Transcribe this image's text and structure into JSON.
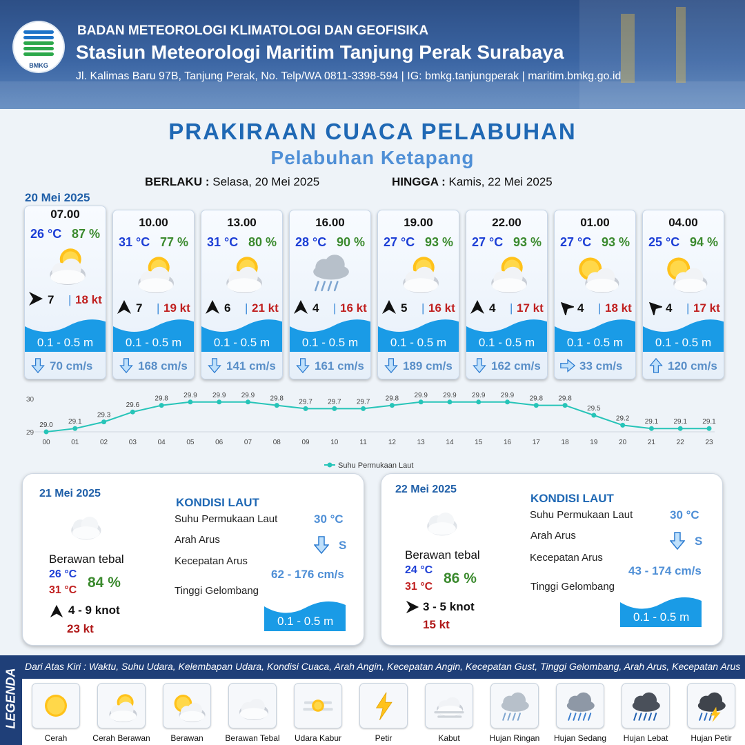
{
  "header": {
    "logo_text": "BMKG",
    "agency": "BADAN METEOROLOGI KLIMATOLOGI DAN GEOFISIKA",
    "station": "Stasiun Meteorologi Maritim Tanjung Perak Surabaya",
    "address": "Jl. Kalimas Baru 97B, Tanjung Perak, No. Telp/WA 0811-3398-594 | IG: bmkg.tanjungperak | maritim.bmkg.go.id"
  },
  "title": "PRAKIRAAN CUACA PELABUHAN",
  "subtitle": "Pelabuhan Ketapang",
  "validity": {
    "from_label": "BERLAKU :",
    "from_value": "Selasa, 20 Mei 2025",
    "to_label": "HINGGA :",
    "to_value": "Kamis, 22 Mei 2025"
  },
  "day1_date": "20 Mei 2025",
  "forecasts": [
    {
      "time": "07.00",
      "temp": "26 °C",
      "humidity": "87 %",
      "weather_icon": "cerah-berawan-icon",
      "wind_dir_icon": "arrow-east-icon",
      "wind_deg": 90,
      "wind_speed": "7",
      "gust": "18 kt",
      "wave": "0.1 - 0.5 m",
      "current_dir_icon": "arrow-down-icon",
      "current_deg": 180,
      "current_speed": "70 cm/s"
    },
    {
      "time": "10.00",
      "temp": "31 °C",
      "humidity": "77 %",
      "weather_icon": "cerah-berawan-icon",
      "wind_dir_icon": "arrow-north-icon",
      "wind_deg": 0,
      "wind_speed": "7",
      "gust": "19 kt",
      "wave": "0.1 - 0.5 m",
      "current_dir_icon": "arrow-down-icon",
      "current_deg": 180,
      "current_speed": "168 cm/s"
    },
    {
      "time": "13.00",
      "temp": "31 °C",
      "humidity": "80 %",
      "weather_icon": "cerah-berawan-icon",
      "wind_dir_icon": "arrow-north-icon",
      "wind_deg": 0,
      "wind_speed": "6",
      "gust": "21 kt",
      "wave": "0.1 - 0.5 m",
      "current_dir_icon": "arrow-down-icon",
      "current_deg": 180,
      "current_speed": "141 cm/s"
    },
    {
      "time": "16.00",
      "temp": "28 °C",
      "humidity": "90 %",
      "weather_icon": "hujan-ringan-icon",
      "wind_dir_icon": "arrow-north-icon",
      "wind_deg": 0,
      "wind_speed": "4",
      "gust": "16 kt",
      "wave": "0.1 - 0.5 m",
      "current_dir_icon": "arrow-down-icon",
      "current_deg": 180,
      "current_speed": "161 cm/s"
    },
    {
      "time": "19.00",
      "temp": "27 °C",
      "humidity": "93 %",
      "weather_icon": "cerah-berawan-icon",
      "wind_dir_icon": "arrow-north-icon",
      "wind_deg": 0,
      "wind_speed": "5",
      "gust": "16 kt",
      "wave": "0.1 - 0.5 m",
      "current_dir_icon": "arrow-down-icon",
      "current_deg": 180,
      "current_speed": "189 cm/s"
    },
    {
      "time": "22.00",
      "temp": "27 °C",
      "humidity": "93 %",
      "weather_icon": "cerah-berawan-icon",
      "wind_dir_icon": "arrow-north-icon",
      "wind_deg": 0,
      "wind_speed": "4",
      "gust": "17 kt",
      "wave": "0.1 - 0.5 m",
      "current_dir_icon": "arrow-down-icon",
      "current_deg": 180,
      "current_speed": "162 cm/s"
    },
    {
      "time": "01.00",
      "temp": "27 °C",
      "humidity": "93 %",
      "weather_icon": "berawan-icon",
      "wind_dir_icon": "arrow-northwest-icon",
      "wind_deg": 315,
      "wind_speed": "4",
      "gust": "18 kt",
      "wave": "0.1 - 0.5 m",
      "current_dir_icon": "arrow-right-icon",
      "current_deg": 90,
      "current_speed": "33 cm/s"
    },
    {
      "time": "04.00",
      "temp": "25 °C",
      "humidity": "94 %",
      "weather_icon": "berawan-icon",
      "wind_dir_icon": "arrow-northwest-icon",
      "wind_deg": 315,
      "wind_speed": "4",
      "gust": "17 kt",
      "wave": "0.1 - 0.5 m",
      "current_dir_icon": "arrow-up-icon",
      "current_deg": 0,
      "current_speed": "120 cm/s"
    }
  ],
  "chart_data": {
    "type": "line",
    "x": [
      "00",
      "01",
      "02",
      "03",
      "04",
      "05",
      "06",
      "07",
      "08",
      "09",
      "10",
      "11",
      "12",
      "13",
      "14",
      "15",
      "16",
      "17",
      "18",
      "19",
      "20",
      "21",
      "22",
      "23"
    ],
    "series": [
      {
        "name": "Suhu Permukaan Laut",
        "values": [
          29.0,
          29.1,
          29.3,
          29.6,
          29.8,
          29.9,
          29.9,
          29.9,
          29.8,
          29.7,
          29.7,
          29.7,
          29.8,
          29.9,
          29.9,
          29.9,
          29.9,
          29.8,
          29.8,
          29.5,
          29.2,
          29.1,
          29.1,
          29.1
        ],
        "color": "#26c4b8"
      }
    ],
    "y_ticks": [
      "30",
      "29"
    ],
    "ylim": [
      29,
      30
    ],
    "legend_position": "bottom-center",
    "grid": false
  },
  "days": [
    {
      "date": "21 Mei 2025",
      "icon": "berawan-tebal-icon",
      "condition": "Berawan tebal",
      "tmin": "26 °C",
      "tmax": "31 °C",
      "humidity": "84 %",
      "wind_dir_icon": "arrow-north-icon",
      "wind_deg": 0,
      "wind": "4 - 9 knot",
      "gust": "23 kt",
      "sea_title": "KONDISI LAUT",
      "sst_label": "Suhu Permukaan Laut",
      "sst": "30 °C",
      "cur_dir_label": "Arah Arus",
      "cur_dir_icon": "arrow-down-icon",
      "cur_dir": "S",
      "cur_spd_label": "Kecepatan Arus",
      "cur_spd": "62 - 176 cm/s",
      "wave_label": "Tinggi Gelombang",
      "wave": "0.1 - 0.5 m"
    },
    {
      "date": "22 Mei 2025",
      "icon": "berawan-tebal-icon",
      "condition": "Berawan tebal",
      "tmin": "24 °C",
      "tmax": "31 °C",
      "humidity": "86 %",
      "wind_dir_icon": "arrow-east-icon",
      "wind_deg": 90,
      "wind": "3 - 5 knot",
      "gust": "15 kt",
      "sea_title": "KONDISI LAUT",
      "sst_label": "Suhu Permukaan Laut",
      "sst": "30 °C",
      "cur_dir_label": "Arah Arus",
      "cur_dir_icon": "arrow-down-icon",
      "cur_dir": "S",
      "cur_spd_label": "Kecepatan Arus",
      "cur_spd": "43 - 174 cm/s",
      "wave_label": "Tinggi Gelombang",
      "wave": "0.1 - 0.5 m"
    }
  ],
  "legend": {
    "side_title": "LEGENDA",
    "description": "Dari Atas Kiri : Waktu, Suhu Udara, Kelembapan Udara, Kondisi Cuaca, Arah Angin, Kecepatan Angin, Kecepatan Gust, Tinggi Gelombang, Arah Arus, Kecepatan Arus",
    "items": [
      {
        "label": "Cerah",
        "icon": "cerah-icon"
      },
      {
        "label": "Cerah Berawan",
        "icon": "cerah-berawan-icon"
      },
      {
        "label": "Berawan",
        "icon": "berawan-icon"
      },
      {
        "label": "Berawan Tebal",
        "icon": "berawan-tebal-icon"
      },
      {
        "label": "Udara Kabur",
        "icon": "udara-kabur-icon"
      },
      {
        "label": "Petir",
        "icon": "petir-icon"
      },
      {
        "label": "Kabut",
        "icon": "kabut-icon"
      },
      {
        "label": "Hujan Ringan",
        "icon": "hujan-ringan-icon"
      },
      {
        "label": "Hujan Sedang",
        "icon": "hujan-sedang-icon"
      },
      {
        "label": "Hujan Lebat",
        "icon": "hujan-lebat-icon"
      },
      {
        "label": "Hujan Petir",
        "icon": "hujan-petir-icon"
      }
    ]
  },
  "colors": {
    "title_blue": "#1f68b4",
    "temp_blue": "#1d3fd6",
    "humidity_green": "#3b8a2e",
    "gust_red": "#c02020",
    "wave_blue": "#1a9be6",
    "legend_navy": "#1f3f78",
    "line_teal": "#26c4b8"
  }
}
